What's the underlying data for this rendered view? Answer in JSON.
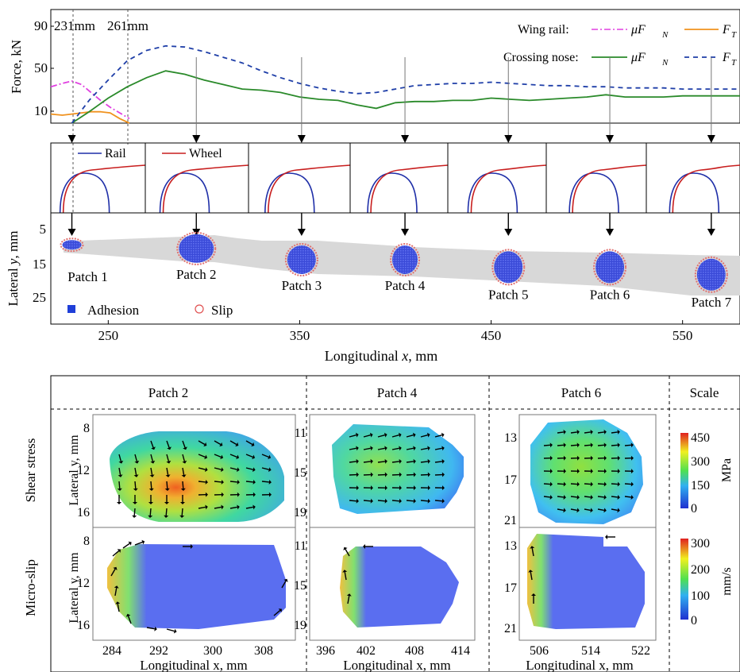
{
  "chart_data": [
    {
      "type": "line",
      "ylabel": "Force, kN",
      "y_ticks": [
        "90",
        "50",
        "10"
      ],
      "ylim": [
        0,
        100
      ],
      "xlim": [
        220,
        580
      ],
      "markers": [
        "231mm",
        "261mm"
      ],
      "legend": {
        "wing_rail_label": "Wing rail:",
        "crossing_nose_label": "Crossing nose:",
        "mu_fn": "μF",
        "mu_fn_sub": "N",
        "ft": "F",
        "ft_sub": "T"
      },
      "series": [
        {
          "name": "Wing rail μF_N",
          "color": "#e040e0",
          "dash": "dashdot",
          "x": [
            220,
            226,
            231,
            236,
            241,
            246,
            251,
            256,
            261
          ],
          "y": [
            32,
            35,
            37,
            34,
            27,
            20,
            14,
            9,
            4
          ]
        },
        {
          "name": "Wing rail F_T",
          "color": "#f0921e",
          "dash": "solid",
          "x": [
            220,
            226,
            231,
            236,
            241,
            246,
            251,
            256,
            261
          ],
          "y": [
            8,
            7,
            8,
            9,
            10,
            10,
            9,
            4,
            0
          ]
        },
        {
          "name": "Crossing nose μF_N",
          "color": "#2a8a2a",
          "dash": "solid",
          "x": [
            231,
            240,
            250,
            260,
            270,
            280,
            290,
            300,
            310,
            320,
            330,
            340,
            350,
            360,
            370,
            380,
            390,
            400,
            410,
            420,
            430,
            440,
            450,
            460,
            470,
            480,
            490,
            500,
            510,
            520,
            530,
            540,
            550,
            560,
            570,
            580
          ],
          "y": [
            0,
            10,
            22,
            32,
            40,
            46,
            43,
            38,
            34,
            30,
            29,
            27,
            23,
            21,
            20,
            16,
            13,
            18,
            19,
            19,
            20,
            20,
            22,
            21,
            20,
            21,
            22,
            23,
            25,
            23,
            23,
            23,
            24,
            24,
            24,
            24
          ]
        },
        {
          "name": "Crossing nose F_T",
          "color": "#1f3fa8",
          "dash": "dashed",
          "x": [
            231,
            240,
            250,
            260,
            270,
            280,
            290,
            300,
            310,
            320,
            330,
            340,
            350,
            360,
            370,
            380,
            390,
            400,
            410,
            420,
            430,
            440,
            450,
            460,
            470,
            480,
            490,
            500,
            510,
            520,
            530,
            540,
            550,
            560,
            570,
            580
          ],
          "y": [
            0,
            20,
            38,
            55,
            64,
            68,
            67,
            63,
            58,
            53,
            46,
            40,
            35,
            31,
            28,
            26,
            27,
            30,
            33,
            34,
            35,
            35,
            36,
            35,
            34,
            33,
            33,
            32,
            32,
            31,
            31,
            31,
            30,
            30,
            30,
            30
          ]
        }
      ]
    },
    {
      "type": "line",
      "description_free": true,
      "legend": {
        "rail": "Rail",
        "wheel": "Wheel"
      },
      "profiles": 7
    },
    {
      "type": "scatter",
      "ylabel_prefix": "Lateral ",
      "ylabel_var": "y",
      "ylabel_suffix": ", mm",
      "xlabel_prefix": "Longitudinal ",
      "xlabel_var": "x",
      "xlabel_suffix": ", mm",
      "y_ticks": [
        "5",
        "15",
        "25"
      ],
      "x_ticks": [
        "250",
        "350",
        "450",
        "550"
      ],
      "xlim": [
        220,
        580
      ],
      "legend": {
        "adhesion": "Adhesion",
        "slip": "Slip"
      },
      "patches": [
        {
          "label": "Patch 1",
          "x": 231,
          "y": 11
        },
        {
          "label": "Patch 2",
          "x": 296,
          "y": 12
        },
        {
          "label": "Patch 3",
          "x": 351,
          "y": 15
        },
        {
          "label": "Patch 4",
          "x": 405,
          "y": 15
        },
        {
          "label": "Patch 5",
          "x": 459,
          "y": 17
        },
        {
          "label": "Patch 6",
          "x": 512,
          "y": 17
        },
        {
          "label": "Patch 7",
          "x": 565,
          "y": 19
        }
      ]
    },
    {
      "type": "heatmap",
      "columns": [
        "Patch 2",
        "Patch 4",
        "Patch 6",
        "Scale"
      ],
      "rows": [
        "Shear stress",
        "Micro-slip"
      ],
      "ylabel": "Lateral y, mm",
      "xlabel": "Longitudinal x, mm",
      "patch2": {
        "y_ticks": [
          "8",
          "12",
          "16"
        ],
        "x_ticks": [
          "284",
          "292",
          "300",
          "308"
        ]
      },
      "patch4": {
        "y_ticks": [
          "11",
          "15",
          "19"
        ],
        "x_ticks": [
          "396",
          "402",
          "408",
          "414"
        ]
      },
      "patch6": {
        "y_ticks": [
          "13",
          "17",
          "21"
        ],
        "x_ticks": [
          "506",
          "514",
          "522"
        ]
      },
      "scale_shear": {
        "ticks": [
          "450",
          "300",
          "150",
          "0"
        ],
        "unit": "MPa",
        "range": [
          0,
          450
        ]
      },
      "scale_slip": {
        "ticks": [
          "300",
          "200",
          "100",
          "0"
        ],
        "unit": "mm/s",
        "range": [
          0,
          300
        ]
      }
    }
  ]
}
